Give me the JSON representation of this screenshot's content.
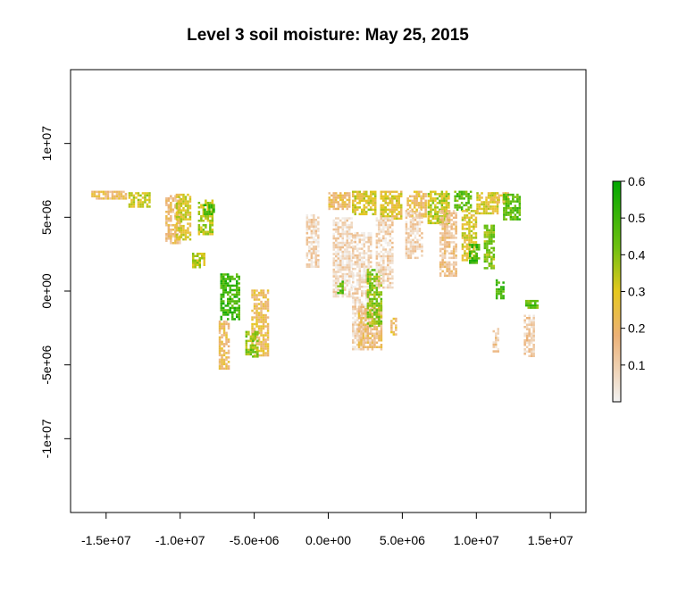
{
  "chart_data": {
    "type": "heatmap",
    "title": "Level 3 soil moisture: May 25, 2015",
    "xlabel": "",
    "ylabel": "",
    "x_ticks": [
      -15000000,
      -10000000,
      -5000000,
      0,
      5000000,
      10000000,
      15000000
    ],
    "x_tick_labels": [
      "-1.5e+07",
      "-1.0e+07",
      "-5.0e+06",
      "0.0e+00",
      "5.0e+06",
      "1.0e+07",
      "1.5e+07"
    ],
    "y_ticks": [
      10000000,
      5000000,
      0,
      -5000000,
      -10000000
    ],
    "y_tick_labels": [
      "1e+07",
      "5e+06",
      "0e+00",
      "-5e+06",
      "-1e+07"
    ],
    "xlim": [
      -17400000,
      17400000
    ],
    "ylim": [
      -15000000,
      15000000
    ],
    "colorbar": {
      "ticks": [
        0.1,
        0.2,
        0.3,
        0.4,
        0.5,
        0.6
      ],
      "tick_labels": [
        "0.1",
        "0.2",
        "0.3",
        "0.4",
        "0.5",
        "0.6"
      ],
      "range": [
        0.0,
        0.6
      ],
      "colors": [
        "#f2f2f2",
        "#ecb176",
        "#e6c81e",
        "#6fc010",
        "#00a600"
      ]
    },
    "swaths": [
      {
        "x": [
          -16000000,
          -13600000
        ],
        "y": [
          6200000,
          6800000
        ],
        "moisture": 0.2
      },
      {
        "x": [
          -13500000,
          -12000000
        ],
        "y": [
          5600000,
          6700000
        ],
        "moisture": 0.32
      },
      {
        "x": [
          -11000000,
          -10000000
        ],
        "y": [
          3200000,
          6500000
        ],
        "moisture": 0.18
      },
      {
        "x": [
          -10300000,
          -9300000
        ],
        "y": [
          3500000,
          6600000
        ],
        "moisture": 0.3
      },
      {
        "x": [
          -8800000,
          -7800000
        ],
        "y": [
          3800000,
          6200000
        ],
        "moisture": 0.35
      },
      {
        "x": [
          -8400000,
          -7600000
        ],
        "y": [
          5200000,
          5900000
        ],
        "moisture": 0.5
      },
      {
        "x": [
          -9200000,
          -8300000
        ],
        "y": [
          1500000,
          2600000
        ],
        "moisture": 0.35
      },
      {
        "x": [
          -7300000,
          -6000000
        ],
        "y": [
          -2000000,
          1200000
        ],
        "moisture": 0.5
      },
      {
        "x": [
          -7400000,
          -6600000
        ],
        "y": [
          -5300000,
          -2000000
        ],
        "moisture": 0.2
      },
      {
        "x": [
          -5200000,
          -4000000
        ],
        "y": [
          -4500000,
          100000
        ],
        "moisture": 0.22
      },
      {
        "x": [
          -5600000,
          -4700000
        ],
        "y": [
          -4500000,
          -2700000
        ],
        "moisture": 0.4
      },
      {
        "x": [
          -1500000,
          -600000
        ],
        "y": [
          1500000,
          5200000
        ],
        "moisture": 0.08
      },
      {
        "x": [
          0,
          1500000
        ],
        "y": [
          5500000,
          6700000
        ],
        "moisture": 0.2
      },
      {
        "x": [
          300000,
          1600000
        ],
        "y": [
          -400000,
          5000000
        ],
        "moisture": 0.07
      },
      {
        "x": [
          600000,
          1100000
        ],
        "y": [
          -300000,
          700000
        ],
        "moisture": 0.45
      },
      {
        "x": [
          1600000,
          3200000
        ],
        "y": [
          5200000,
          6800000
        ],
        "moisture": 0.3
      },
      {
        "x": [
          1600000,
          3000000
        ],
        "y": [
          -4000000,
          4000000
        ],
        "moisture": 0.07
      },
      {
        "x": [
          2000000,
          3600000
        ],
        "y": [
          -4000000,
          -1000000
        ],
        "moisture": 0.18
      },
      {
        "x": [
          2600000,
          3600000
        ],
        "y": [
          -2400000,
          1500000
        ],
        "moisture": 0.4
      },
      {
        "x": [
          3500000,
          5000000
        ],
        "y": [
          4800000,
          6800000
        ],
        "moisture": 0.28
      },
      {
        "x": [
          3200000,
          4400000
        ],
        "y": [
          200000,
          5000000
        ],
        "moisture": 0.08
      },
      {
        "x": [
          4200000,
          4700000
        ],
        "y": [
          -3000000,
          -1800000
        ],
        "moisture": 0.22
      },
      {
        "x": [
          5300000,
          6700000
        ],
        "y": [
          5000000,
          6800000
        ],
        "moisture": 0.22
      },
      {
        "x": [
          5200000,
          6400000
        ],
        "y": [
          2200000,
          5500000
        ],
        "moisture": 0.08
      },
      {
        "x": [
          6700000,
          8200000
        ],
        "y": [
          4500000,
          6800000
        ],
        "moisture": 0.35
      },
      {
        "x": [
          7500000,
          8700000
        ],
        "y": [
          1000000,
          5500000
        ],
        "moisture": 0.15
      },
      {
        "x": [
          8500000,
          9700000
        ],
        "y": [
          5500000,
          6800000
        ],
        "moisture": 0.45
      },
      {
        "x": [
          9000000,
          10000000
        ],
        "y": [
          2000000,
          5500000
        ],
        "moisture": 0.3
      },
      {
        "x": [
          9500000,
          10200000
        ],
        "y": [
          1800000,
          3200000
        ],
        "moisture": 0.5
      },
      {
        "x": [
          10000000,
          11500000
        ],
        "y": [
          5200000,
          6700000
        ],
        "moisture": 0.3
      },
      {
        "x": [
          10500000,
          11200000
        ],
        "y": [
          1500000,
          4500000
        ],
        "moisture": 0.4
      },
      {
        "x": [
          11000000,
          12200000
        ],
        "y": [
          6000000,
          6700000
        ],
        "moisture": 0.25
      },
      {
        "x": [
          11800000,
          13000000
        ],
        "y": [
          4800000,
          6600000
        ],
        "moisture": 0.45
      },
      {
        "x": [
          11300000,
          11900000
        ],
        "y": [
          -500000,
          800000
        ],
        "moisture": 0.48
      },
      {
        "x": [
          11100000,
          11600000
        ],
        "y": [
          -4200000,
          -2500000
        ],
        "moisture": 0.12
      },
      {
        "x": [
          13200000,
          14000000
        ],
        "y": [
          -4400000,
          -1600000
        ],
        "moisture": 0.1
      },
      {
        "x": [
          13300000,
          14200000
        ],
        "y": [
          -1200000,
          -600000
        ],
        "moisture": 0.45
      }
    ]
  }
}
